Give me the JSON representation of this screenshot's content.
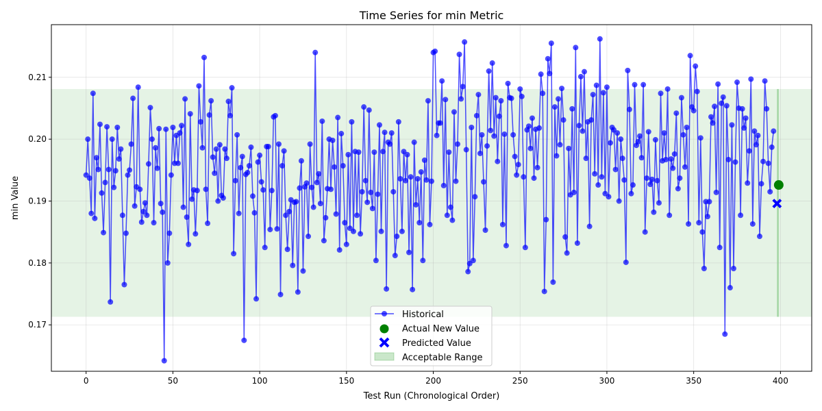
{
  "chart_data": {
    "type": "line",
    "title": "Time Series for min Metric",
    "xlabel": "Test Run (Chronological Order)",
    "ylabel": "min Value",
    "xlim": [
      -20,
      418
    ],
    "ylim": [
      0.1625,
      0.2185
    ],
    "x_ticks": [
      0,
      50,
      100,
      150,
      200,
      250,
      300,
      350,
      400
    ],
    "y_ticks": [
      0.17,
      0.18,
      0.19,
      0.2,
      0.21
    ],
    "y_tick_labels": [
      "0.17",
      "0.18",
      "0.19",
      "0.20",
      "0.21"
    ],
    "grid": true,
    "legend_position": "bottom-center",
    "acceptable_range": {
      "name": "Acceptable Range",
      "y_min": 0.1713,
      "y_max": 0.2081,
      "x_start": 398,
      "x_end": 399,
      "color": "#2ca02c"
    },
    "series": [
      {
        "name": "Historical",
        "color": "#0000ff",
        "x_start": 0,
        "values": [
          0.1942,
          0.2,
          0.1937,
          0.188,
          0.2074,
          0.1872,
          0.197,
          0.1951,
          0.2024,
          0.1913,
          0.1849,
          0.193,
          0.202,
          0.1951,
          0.1737,
          0.2,
          0.1922,
          0.1949,
          0.2019,
          0.1968,
          0.1984,
          0.1877,
          0.1765,
          0.1848,
          0.1942,
          0.195,
          0.1992,
          0.2066,
          0.1892,
          0.1923,
          0.2084,
          0.1919,
          0.1866,
          0.1883,
          0.1897,
          0.1877,
          0.196,
          0.2051,
          0.2,
          0.1865,
          0.1986,
          0.1953,
          0.2017,
          0.1896,
          0.1882,
          0.1642,
          0.2016,
          0.18,
          0.1848,
          0.1942,
          0.2019,
          0.1961,
          0.2006,
          0.1961,
          0.201,
          0.2022,
          0.189,
          0.2065,
          0.1874,
          0.183,
          0.2041,
          0.1903,
          0.1918,
          0.1847,
          0.1917,
          0.2086,
          0.2028,
          0.1986,
          0.2132,
          0.1919,
          0.1864,
          0.2039,
          0.2062,
          0.1971,
          0.1945,
          0.1984,
          0.19,
          0.1991,
          0.1909,
          0.1905,
          0.1984,
          0.1969,
          0.2061,
          0.2038,
          0.2083,
          0.1815,
          0.1933,
          0.2007,
          0.188,
          0.1954,
          0.1972,
          0.1675,
          0.1943,
          0.1946,
          0.1957,
          0.1987,
          0.1908,
          0.1881,
          0.1742,
          0.1963,
          0.1974,
          0.1931,
          0.1918,
          0.1825,
          0.1988,
          0.1988,
          0.1854,
          0.1917,
          0.2036,
          0.2038,
          0.1855,
          0.1992,
          0.1749,
          0.1957,
          0.1981,
          0.1877,
          0.1822,
          0.1883,
          0.1902,
          0.1796,
          0.1898,
          0.1899,
          0.1753,
          0.1921,
          0.1965,
          0.1787,
          0.1923,
          0.1929,
          0.1843,
          0.1992,
          0.1922,
          0.189,
          0.214,
          0.193,
          0.1944,
          0.1896,
          0.2029,
          0.1836,
          0.1873,
          0.192,
          0.2,
          0.1919,
          0.1998,
          0.1955,
          0.1879,
          0.2035,
          0.1821,
          0.2009,
          0.1957,
          0.1865,
          0.183,
          0.1975,
          0.1856,
          0.2028,
          0.1851,
          0.198,
          0.1877,
          0.1979,
          0.1847,
          0.1915,
          0.2052,
          0.1933,
          0.1898,
          0.2047,
          0.1914,
          0.1888,
          0.1979,
          0.1804,
          0.1911,
          0.2023,
          0.1851,
          0.198,
          0.2011,
          0.1758,
          0.1995,
          0.1992,
          0.201,
          0.1915,
          0.1812,
          0.1843,
          0.2028,
          0.1936,
          0.1851,
          0.198,
          0.1933,
          0.1975,
          0.1817,
          0.1939,
          0.1757,
          0.1995,
          0.1894,
          0.1936,
          0.1865,
          0.1947,
          0.1804,
          0.1966,
          0.1934,
          0.2062,
          0.1862,
          0.1932,
          0.214,
          0.2142,
          0.2006,
          0.2026,
          0.2026,
          0.2094,
          0.1925,
          0.2064,
          0.1877,
          0.1979,
          0.189,
          0.1869,
          0.2044,
          0.1932,
          0.1992,
          0.2137,
          0.2065,
          0.2085,
          0.2157,
          0.1983,
          0.1786,
          0.1799,
          0.2019,
          0.1804,
          0.1907,
          0.2038,
          0.2072,
          0.1977,
          0.2007,
          0.1931,
          0.1853,
          0.1989,
          0.211,
          0.2014,
          0.2123,
          0.2005,
          0.2067,
          0.1964,
          0.2037,
          0.2062,
          0.1862,
          0.2008,
          0.1828,
          0.209,
          0.2067,
          0.2066,
          0.2007,
          0.1972,
          0.1942,
          0.1959,
          0.2081,
          0.2069,
          0.1939,
          0.1825,
          0.2015,
          0.2021,
          0.1985,
          0.2034,
          0.1937,
          0.2016,
          0.1954,
          0.2018,
          0.2105,
          0.2074,
          0.1754,
          0.187,
          0.213,
          0.2106,
          0.2155,
          0.1769,
          0.2052,
          0.1973,
          0.2065,
          0.1991,
          0.2082,
          0.2031,
          0.1842,
          0.1816,
          0.1985,
          0.191,
          0.2049,
          0.1914,
          0.2148,
          0.1832,
          0.2022,
          0.2101,
          0.2013,
          0.2109,
          0.1969,
          0.2028,
          0.1859,
          0.2031,
          0.2072,
          0.1944,
          0.2087,
          0.1926,
          0.2162,
          0.1939,
          0.2075,
          0.1912,
          0.2084,
          0.1907,
          0.1994,
          0.2019,
          0.2015,
          0.1951,
          0.201,
          0.19,
          0.2,
          0.1969,
          0.1934,
          0.1801,
          0.2111,
          0.2048,
          0.1912,
          0.1926,
          0.2088,
          0.199,
          0.1996,
          0.2005,
          0.197,
          0.2088,
          0.185,
          0.1937,
          0.2012,
          0.1927,
          0.1935,
          0.1882,
          0.1999,
          0.1933,
          0.1897,
          0.2074,
          0.1965,
          0.201,
          0.1967,
          0.2081,
          0.1877,
          0.1968,
          0.1953,
          0.1976,
          0.2042,
          0.192,
          0.1937,
          0.2067,
          0.2007,
          0.1955,
          0.2019,
          0.1863,
          0.2135,
          0.2052,
          0.2046,
          0.2118,
          0.2077,
          0.1865,
          0.2002,
          0.185,
          0.1791,
          0.1899,
          0.1875,
          0.1899,
          0.2036,
          0.2026,
          0.2053,
          0.1914,
          0.2089,
          0.1825,
          0.2058,
          0.2068,
          0.1685,
          0.2054,
          0.1967,
          0.176,
          0.2023,
          0.1791,
          0.1963,
          0.2092,
          0.205,
          0.1877,
          0.2049,
          0.2018,
          0.2034,
          0.1929,
          0.1981,
          0.2097,
          0.1863,
          0.2013,
          0.1991,
          0.2006,
          0.1843,
          0.1928,
          0.1964,
          0.2094,
          0.2049,
          0.1961,
          0.1915,
          0.1987,
          0.2013
        ]
      }
    ],
    "points": [
      {
        "name": "Actual New Value",
        "x": 399,
        "y": 0.1926,
        "color": "#008000",
        "marker": "circle"
      },
      {
        "name": "Predicted Value",
        "x": 398,
        "y": 0.1896,
        "color": "#0000ff",
        "marker": "x"
      }
    ],
    "legend": [
      "Historical",
      "Actual New Value",
      "Predicted Value",
      "Acceptable Range"
    ]
  }
}
